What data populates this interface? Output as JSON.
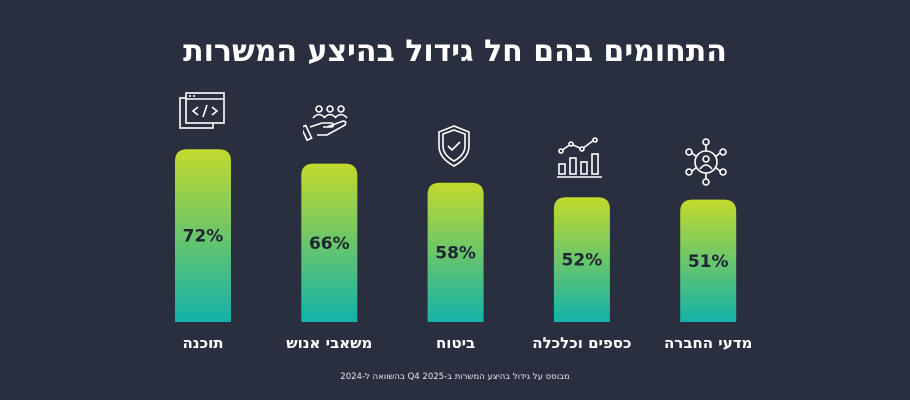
{
  "chart_data": {
    "type": "bar",
    "title": "התחומים בהם חל גידול בהיצע המשרות",
    "categories": [
      "תוכנה",
      "משאבי אנוש",
      "ביטוח",
      "כספים וכלכלה",
      "מדעי החברה"
    ],
    "values": [
      72,
      66,
      58,
      52,
      51
    ],
    "value_labels": [
      "72%",
      "66%",
      "58%",
      "52%",
      "51%"
    ],
    "icons": [
      "code-window-icon",
      "hand-people-icon",
      "shield-check-icon",
      "bar-chart-trend-icon",
      "network-user-icon"
    ],
    "ylim": [
      0,
      100
    ],
    "grid": false,
    "footnote": "מבוסס על גידול בהיצע המשרות ב-Q4 2025 בהשוואה ל-2024",
    "colors": {
      "bar_top": "#c3da2c",
      "bar_bottom": "#12b2a9",
      "background": "#2a2f40",
      "value_text": "#1f2533"
    }
  }
}
